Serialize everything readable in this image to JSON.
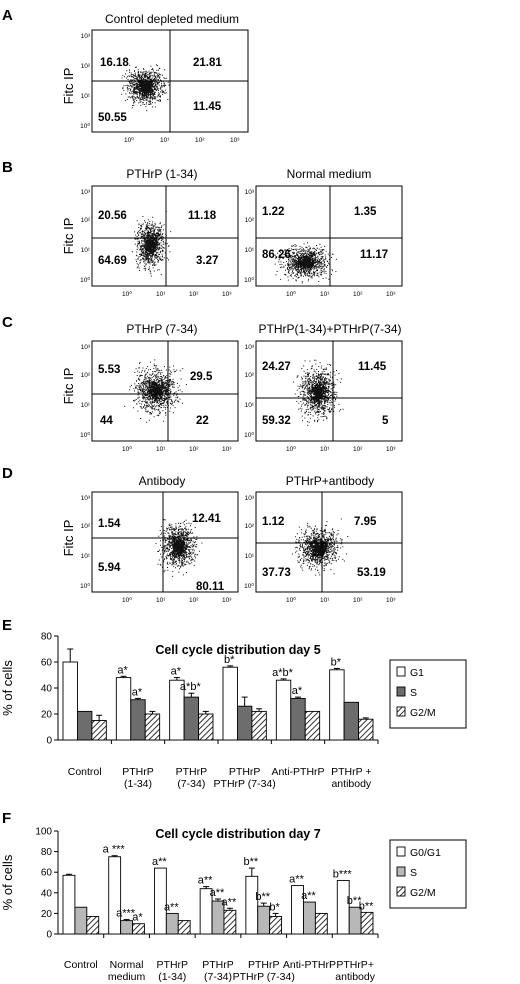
{
  "panels": {
    "A": {
      "letter": "A",
      "y_axis_label": "Fitc IP",
      "plots": [
        {
          "title": "Control depleted medium",
          "quadrants": {
            "ul": "16.18",
            "ur": "21.81",
            "ll": "50.55",
            "lr": "11.45"
          }
        }
      ]
    },
    "B": {
      "letter": "B",
      "y_axis_label": "Fitc IP",
      "plots": [
        {
          "title": "PTHrP (1-34)",
          "quadrants": {
            "ul": "20.56",
            "ur": "11.18",
            "ll": "64.69",
            "lr": "3.27"
          }
        },
        {
          "title": "Normal medium",
          "quadrants": {
            "ul": "1.22",
            "ur": "1.35",
            "ll": "86.26",
            "lr": "11.17"
          }
        }
      ]
    },
    "C": {
      "letter": "C",
      "y_axis_label": "Fitc IP",
      "plots": [
        {
          "title": "PTHrP (7-34)",
          "quadrants": {
            "ul": "5.53",
            "ur": "29.5",
            "ll": "44",
            "lr": "22"
          }
        },
        {
          "title": "PTHrP(1-34)+PTHrP(7-34)",
          "quadrants": {
            "ul": "24.27",
            "ur": "11.45",
            "ll": "59.32",
            "lr": "5"
          }
        }
      ]
    },
    "D": {
      "letter": "D",
      "y_axis_label": "Fitc IP",
      "plots": [
        {
          "title": "Antibody",
          "quadrants": {
            "ul": "1.54",
            "ur": "12.41",
            "ll": "5.94",
            "lr": "80.11"
          }
        },
        {
          "title": "PTHrP+antibody",
          "quadrants": {
            "ul": "1.12",
            "ur": "7.95",
            "ll": "37.73",
            "lr": "53.19"
          }
        }
      ]
    }
  },
  "flow_axis": {
    "x_ticks": [
      "10⁰",
      "10¹",
      "10²",
      "10³"
    ],
    "y_ticks": [
      "10⁰",
      "10¹",
      "10²",
      "10³"
    ]
  },
  "chart_data": [
    {
      "type": "bar",
      "letter": "E",
      "title": "Cell cycle distribution day 5",
      "ylabel": "% of cells",
      "ylim": [
        0,
        80
      ],
      "yticks": [
        0,
        20,
        40,
        60,
        80
      ],
      "categories": [
        "Control",
        "PTHrP\n(1-34)",
        "PTHrP\n(7-34)",
        "PTHrP\nPTHrP (7-34)",
        "Anti-PTHrP",
        "PTHrP +\nantibody"
      ],
      "series": [
        {
          "name": "G1",
          "fill": "#ffffff",
          "pattern": "none",
          "values": [
            60,
            48,
            46,
            56,
            46,
            54
          ],
          "errors": [
            10,
            1,
            2,
            1,
            1,
            1
          ],
          "annotations": [
            "",
            "a*",
            "a*",
            "b*",
            "a*b*",
            "b*"
          ]
        },
        {
          "name": "S",
          "fill": "#6d6d6d",
          "pattern": "none",
          "values": [
            22,
            31,
            33,
            26,
            32,
            29
          ],
          "errors": [
            0,
            1,
            3,
            7,
            1,
            0
          ],
          "annotations": [
            "",
            "a*",
            "a*b*",
            "",
            "a*",
            ""
          ]
        },
        {
          "name": "G2/M",
          "fill": "#ffffff",
          "pattern": "hatch",
          "values": [
            15,
            20,
            20,
            22,
            22,
            16
          ],
          "errors": [
            4,
            2,
            2,
            2,
            0,
            1
          ],
          "annotations": [
            "",
            "",
            "",
            "",
            "",
            ""
          ]
        }
      ]
    },
    {
      "type": "bar",
      "letter": "F",
      "title": "Cell cycle distribution day 7",
      "ylabel": "% of cells",
      "ylim": [
        0,
        100
      ],
      "yticks": [
        0,
        20,
        40,
        60,
        80,
        100
      ],
      "categories": [
        "Control",
        "Normal\nmedium",
        "PTHrP\n(1-34)",
        "PTHrP\n(7-34)",
        "PTHrP\nPTHrP (7-34)",
        "Anti-PTHrP",
        "PTHrP+\nantibody"
      ],
      "series": [
        {
          "name": "G0/G1",
          "fill": "#ffffff",
          "pattern": "none",
          "values": [
            57,
            75,
            64,
            44,
            56,
            47,
            52
          ],
          "errors": [
            1,
            1,
            0,
            2,
            8,
            0,
            0
          ],
          "annotations": [
            "",
            "a ***",
            "a**",
            "a**",
            "b**",
            "a**",
            "b***"
          ]
        },
        {
          "name": "S",
          "fill": "#b8b8b8",
          "pattern": "none",
          "values": [
            26,
            13,
            20,
            32,
            27,
            31,
            26
          ],
          "errors": [
            0,
            1,
            0,
            2,
            3,
            0,
            0
          ],
          "annotations": [
            "",
            "a***",
            "a**",
            "a**",
            "b**",
            "a**",
            "b**"
          ]
        },
        {
          "name": "G2/M",
          "fill": "#ffffff",
          "pattern": "hatch",
          "values": [
            17,
            10,
            13,
            23,
            17,
            20,
            21
          ],
          "errors": [
            0,
            0,
            0,
            2,
            3,
            0,
            0
          ],
          "annotations": [
            "",
            "a*",
            "",
            "a**",
            "b*",
            "",
            "b**"
          ]
        }
      ]
    }
  ]
}
